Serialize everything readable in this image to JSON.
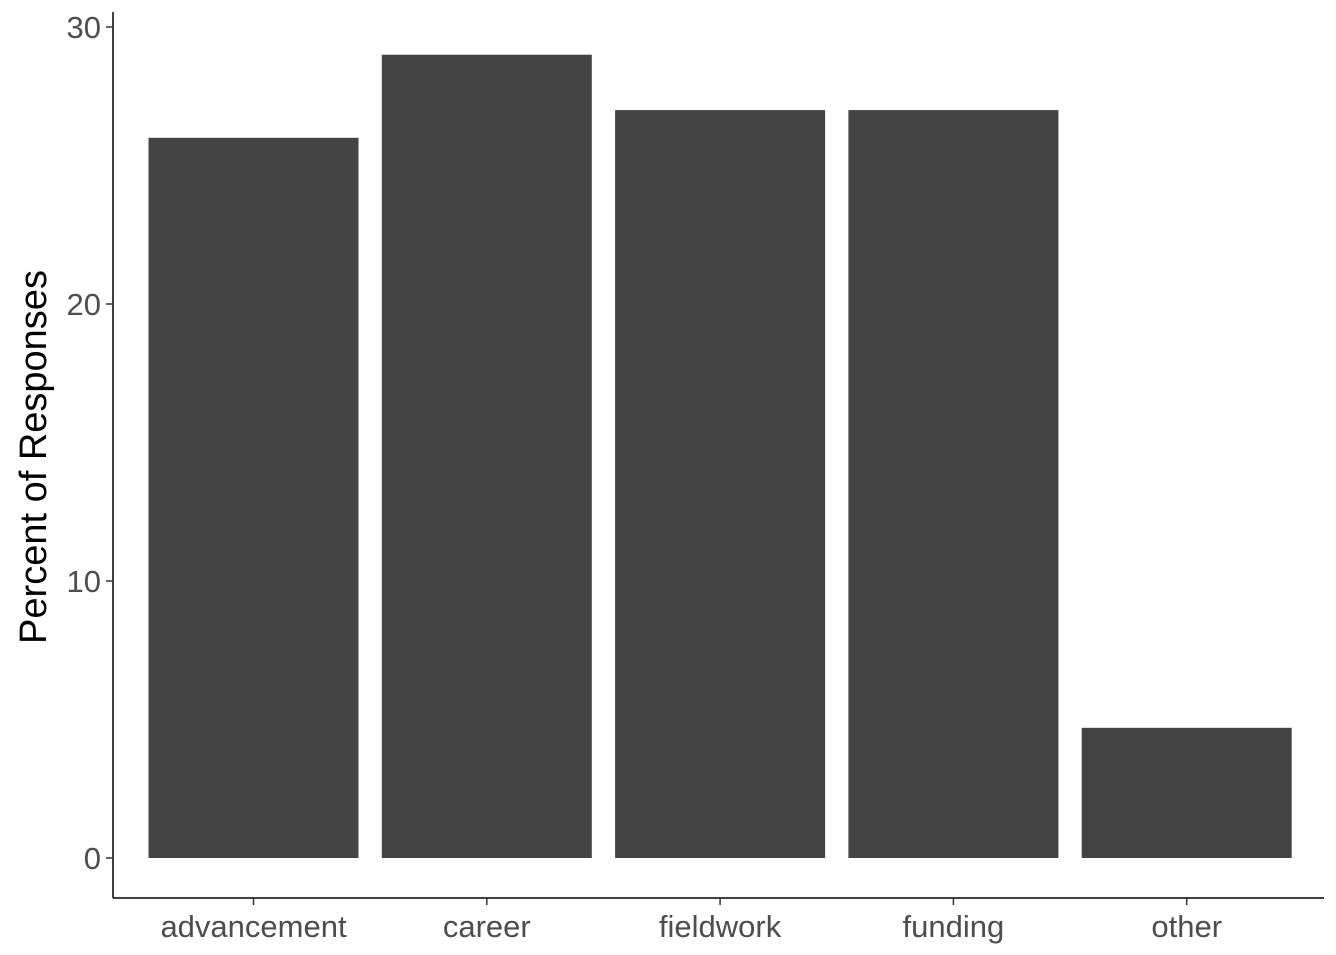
{
  "chart_data": {
    "type": "bar",
    "title": "",
    "xlabel": "",
    "ylabel": "Percent of Responses",
    "categories": [
      "advancement",
      "career",
      "fieldwork",
      "funding",
      "other"
    ],
    "values": [
      26,
      29,
      27,
      27,
      4.7
    ],
    "ylim": [
      0,
      30.5
    ],
    "yticks": [
      0,
      10,
      20,
      30
    ],
    "grid": false,
    "legend": "none",
    "bar_color": "#444444",
    "axis_color": "#000000",
    "tick_label_color": "#4d4d4d"
  }
}
